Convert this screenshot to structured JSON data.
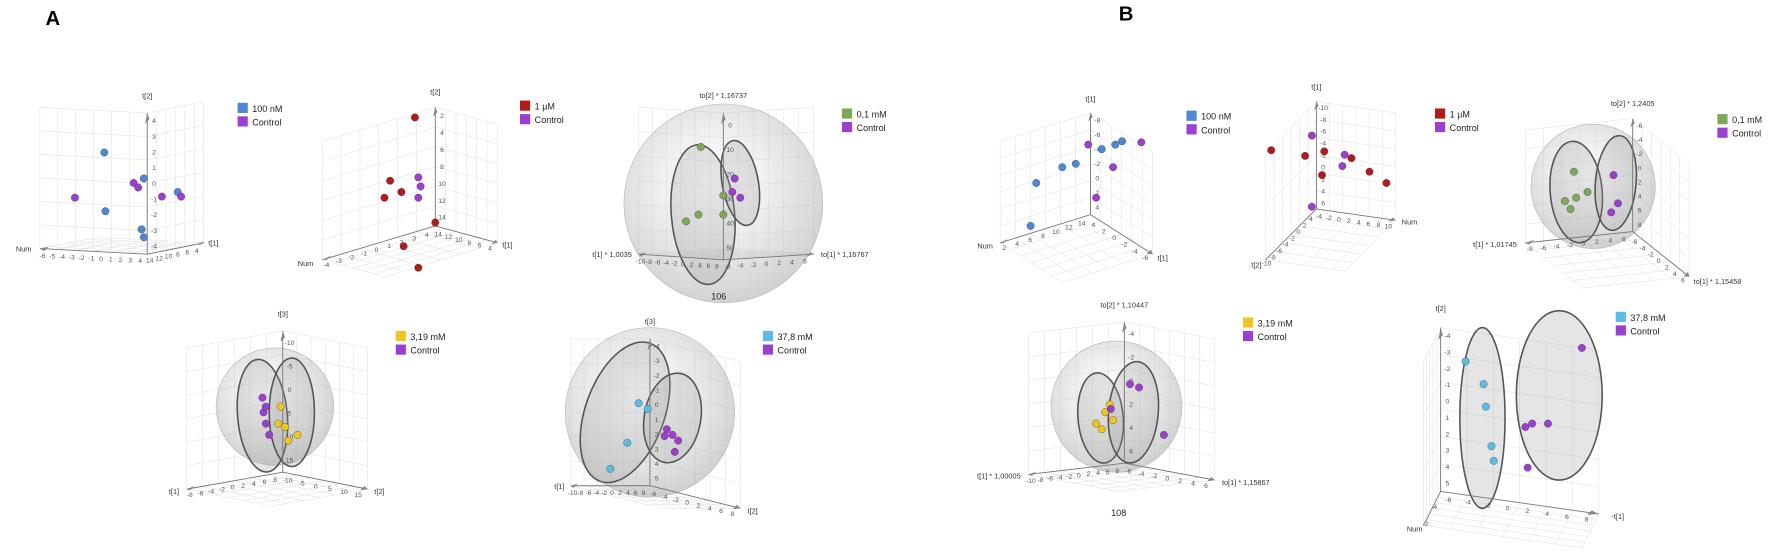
{
  "figure": {
    "sections": [
      {
        "label": "A",
        "plots": [
          {
            "legend": [
              {
                "name": "100 nM",
                "color": "#4f86d6"
              },
              {
                "name": "Control",
                "color": "#9b3fd0"
              }
            ],
            "axes": [
              {
                "label": "t[2]",
                "ticks": [
                  -4,
                  -3,
                  -2,
                  -1,
                  0,
                  1,
                  2,
                  3,
                  4
                ]
              },
              {
                "label": "Num",
                "ticks": [
                  4,
                  3,
                  2,
                  1,
                  0,
                  -1,
                  -2,
                  -3,
                  -4,
                  -5,
                  -6
                ]
              },
              {
                "label": "t[1]",
                "ticks": [
                  14,
                  12,
                  10,
                  8,
                  6,
                  4
                ]
              }
            ]
          },
          {
            "legend": [
              {
                "name": "1 µM",
                "color": "#b01c1c"
              },
              {
                "name": "Control",
                "color": "#9b3fd0"
              }
            ],
            "axes": [
              {
                "label": "t[2]",
                "ticks": [
                  14,
                  12,
                  10,
                  8,
                  6,
                  4,
                  2
                ]
              },
              {
                "label": "Num",
                "ticks": [
                  4,
                  3,
                  2,
                  1,
                  0,
                  -1,
                  -2,
                  -3,
                  -4
                ]
              },
              {
                "label": "t[1]",
                "ticks": [
                  14,
                  12,
                  10,
                  8,
                  6,
                  4
                ]
              }
            ]
          },
          {
            "legend": [
              {
                "name": "0,1 mM",
                "color": "#7fa85a"
              },
              {
                "name": "Control",
                "color": "#9b3fd0"
              }
            ],
            "axes": [
              {
                "label": "to[2] * 1,16737",
                "ticks": [
                  50,
                  40,
                  30,
                  20,
                  10,
                  0
                ]
              },
              {
                "label": "t[1] * 1,0035",
                "ticks": [
                  8,
                  6,
                  4,
                  2,
                  0,
                  -2,
                  -4,
                  -6,
                  -8,
                  -10
                ]
              },
              {
                "label": "to[1] * 1,16767",
                "ticks": [
                  -6,
                  -4,
                  -2,
                  0,
                  2,
                  4,
                  6
                ]
              }
            ],
            "extra": "106"
          },
          {
            "legend": [
              {
                "name": "3,19 mM",
                "color": "#f0c51d"
              },
              {
                "name": "Control",
                "color": "#9b3fd0"
              }
            ],
            "axes": [
              {
                "label": "t[3]",
                "ticks": [
                  15,
                  10,
                  5,
                  0,
                  -5,
                  -10
                ]
              },
              {
                "label": "t[1]",
                "ticks": [
                  8,
                  6,
                  4,
                  2,
                  0,
                  -2,
                  -4,
                  -6,
                  -8
                ]
              },
              {
                "label": "t[2]",
                "ticks": [
                  -10,
                  -5,
                  0,
                  5,
                  10,
                  15
                ]
              }
            ]
          },
          {
            "legend": [
              {
                "name": "37,8 mM",
                "color": "#5bbde5"
              },
              {
                "name": "Control",
                "color": "#9b3fd0"
              }
            ],
            "axes": [
              {
                "label": "t[3]",
                "ticks": [
                  5,
                  4,
                  3,
                  2,
                  1,
                  0,
                  -1,
                  -2,
                  -3,
                  -4
                ]
              },
              {
                "label": "t[1]",
                "ticks": [
                  8,
                  6,
                  4,
                  2,
                  0,
                  -2,
                  -4,
                  -6,
                  -8,
                  -10
                ]
              },
              {
                "label": "t[2]",
                "ticks": [
                  -6,
                  -4,
                  -2,
                  0,
                  2,
                  4,
                  6,
                  8
                ]
              }
            ]
          }
        ]
      },
      {
        "label": "B",
        "plots": [
          {
            "legend": [
              {
                "name": "100 nM",
                "color": "#4f86d6"
              },
              {
                "name": "Control",
                "color": "#9b3fd0"
              }
            ],
            "axes": [
              {
                "label": "t[1]",
                "ticks": [
                  4,
                  2,
                  0,
                  -2,
                  -4,
                  -6,
                  -8
                ]
              },
              {
                "label": "Num",
                "ticks": [
                  14,
                  12,
                  10,
                  8,
                  6,
                  4,
                  2
                ]
              },
              {
                "label": "t[1]",
                "ticks": [
                  4,
                  2,
                  0,
                  -2,
                  -4,
                  -6
                ]
              }
            ]
          },
          {
            "legend": [
              {
                "name": "1 µM",
                "color": "#b01c1c"
              },
              {
                "name": "Control",
                "color": "#9b3fd0"
              }
            ],
            "axes": [
              {
                "label": "t[1]",
                "ticks": [
                  6,
                  4,
                  2,
                  0,
                  -2,
                  -4,
                  -6,
                  -8,
                  -10
                ]
              },
              {
                "label": "t[2]",
                "ticks": [
                  4,
                  2,
                  0,
                  -2,
                  -4,
                  -6,
                  -8,
                  -10
                ]
              },
              {
                "label": "Num",
                "ticks": [
                  -4,
                  -2,
                  0,
                  2,
                  4,
                  6,
                  8,
                  10
                ]
              }
            ]
          },
          {
            "legend": [
              {
                "name": "0,1 mM",
                "color": "#7fa85a"
              },
              {
                "name": "Control",
                "color": "#9b3fd0"
              }
            ],
            "axes": [
              {
                "label": "to[2] * 1,2405",
                "ticks": [
                  8,
                  6,
                  4,
                  2,
                  0,
                  -2,
                  -4,
                  -6
                ]
              },
              {
                "label": "t[1] * 1,01745",
                "ticks": [
                  6,
                  4,
                  2,
                  0,
                  -2,
                  -4,
                  -6,
                  -8
                ]
              },
              {
                "label": "to[1] * 1,15458",
                "ticks": [
                  -6,
                  -4,
                  -2,
                  0,
                  2,
                  4,
                  6
                ]
              }
            ]
          },
          {
            "legend": [
              {
                "name": "3,19 mM",
                "color": "#f0c51d"
              },
              {
                "name": "Control",
                "color": "#9b3fd0"
              }
            ],
            "axes": [
              {
                "label": "to[2] * 1,10447",
                "ticks": [
                  6,
                  4,
                  2,
                  0,
                  -2,
                  -4
                ]
              },
              {
                "label": "t[1] * 1,00005",
                "ticks": [
                  8,
                  6,
                  4,
                  2,
                  0,
                  -2,
                  -4,
                  -6,
                  -8,
                  -10
                ]
              },
              {
                "label": "to[1] * 1,15867",
                "ticks": [
                  -6,
                  -4,
                  -2,
                  0,
                  2,
                  4,
                  6
                ]
              }
            ],
            "extra": "108"
          },
          {
            "legend": [
              {
                "name": "37,8 mM",
                "color": "#5bbde5"
              },
              {
                "name": "Control",
                "color": "#9b3fd0"
              }
            ],
            "axes": [
              {
                "label": "t[2]",
                "ticks": [
                  5,
                  4,
                  3,
                  2,
                  1,
                  0,
                  -1,
                  -2,
                  -3,
                  -4
                ]
              },
              {
                "label": "Num",
                "ticks": [
                  -4,
                  -2
                ]
              },
              {
                "label": "-t[1]",
                "ticks": [
                  -6,
                  -4,
                  -2,
                  0,
                  2,
                  4,
                  6,
                  8
                ]
              }
            ]
          }
        ]
      }
    ]
  }
}
